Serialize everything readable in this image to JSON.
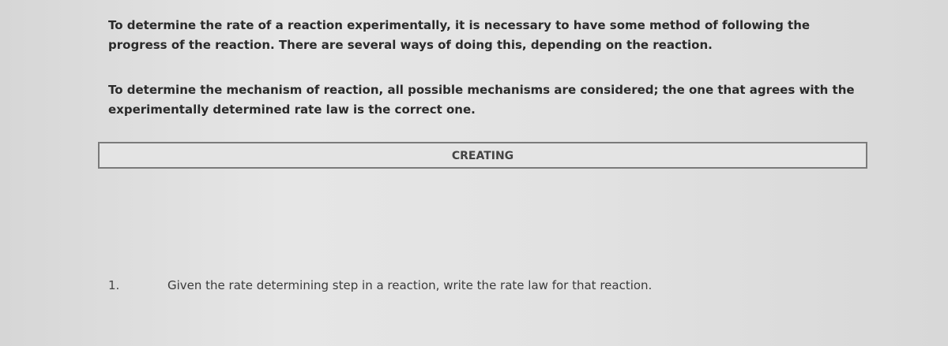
{
  "paragraphs": [
    "To determine the rate of a reaction experimentally, it is necessary to have some method of following the progress of the reaction. There are several ways of doing this, depending on the reaction.",
    "To determine the mechanism of reaction, all possible mechanisms are considered; the one that agrees with the experimentally determined rate law is the correct one."
  ],
  "section": {
    "title": "CREATING"
  },
  "items": [
    {
      "number": "1.",
      "text": "Given the rate determining step in a reaction, write the rate law for that reaction."
    }
  ]
}
